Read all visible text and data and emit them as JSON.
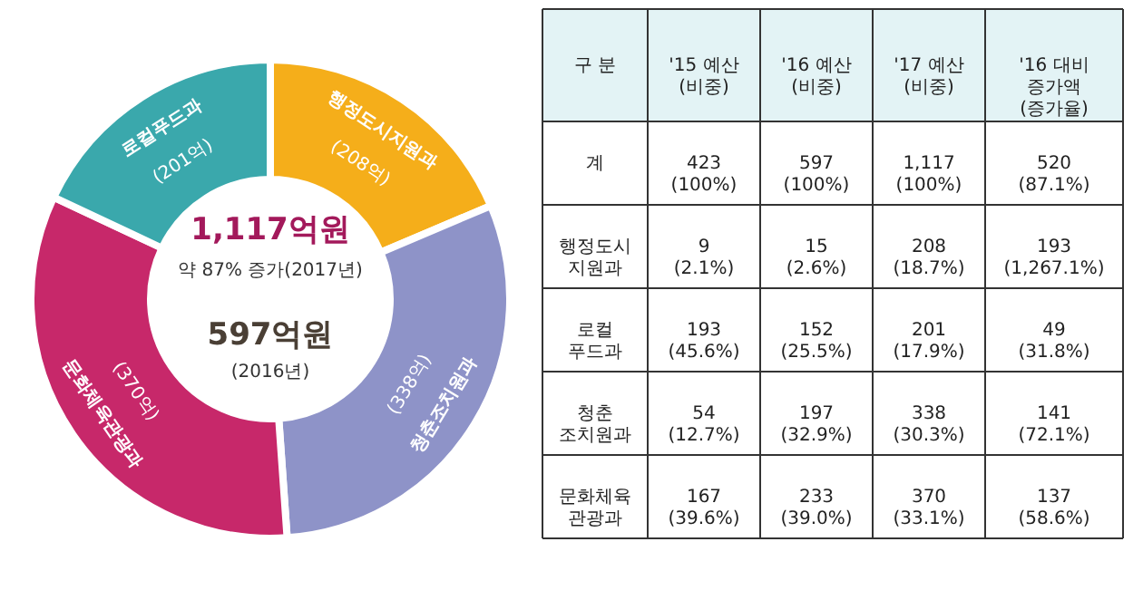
{
  "chart_data": [
    {
      "type": "donut",
      "categories": [
        "행정도시지원과",
        "청춘조치원과",
        "문화체육관광과",
        "로컬푸드과"
      ],
      "values": [
        208,
        338,
        370,
        201
      ],
      "colors": [
        "#f5ae1a",
        "#8e93c8",
        "#c7286a",
        "#3aa8ac"
      ],
      "value_labels": [
        "(208억)",
        "(338억)",
        "(370억)",
        "(201억)"
      ],
      "annotations": [
        "1,117억원",
        "약 87% 증가(2017년)",
        "597억원",
        "(2016년)"
      ]
    },
    {
      "type": "other",
      "annotations": [
        "구 분",
        "'15 예산\n(비중)",
        "'16 예산\n(비중)",
        "'17 예산\n(비중)",
        "'16 대비\n증가액\n(증가율)",
        "계",
        "423\n(100%)",
        "597\n(100%)",
        "1,117\n(100%)",
        "520\n(87.1%)",
        "행정도시\n지원과",
        "9\n(2.1%)",
        "15\n(2.6%)",
        "208\n(18.7%)",
        "193\n(1,267.1%)",
        "로컬\n푸드과",
        "193\n(45.6%)",
        "152\n(25.5%)",
        "201\n(17.9%)",
        "49\n(31.8%)",
        "청춘\n조치원과",
        "54\n(12.7%)",
        "197\n(32.9%)",
        "338\n(30.3%)",
        "141\n(72.1%)",
        "문화체육\n관광과",
        "167\n(39.6%)",
        "233\n(39.0%)",
        "370\n(33.1%)",
        "137\n(58.6%)"
      ]
    }
  ]
}
